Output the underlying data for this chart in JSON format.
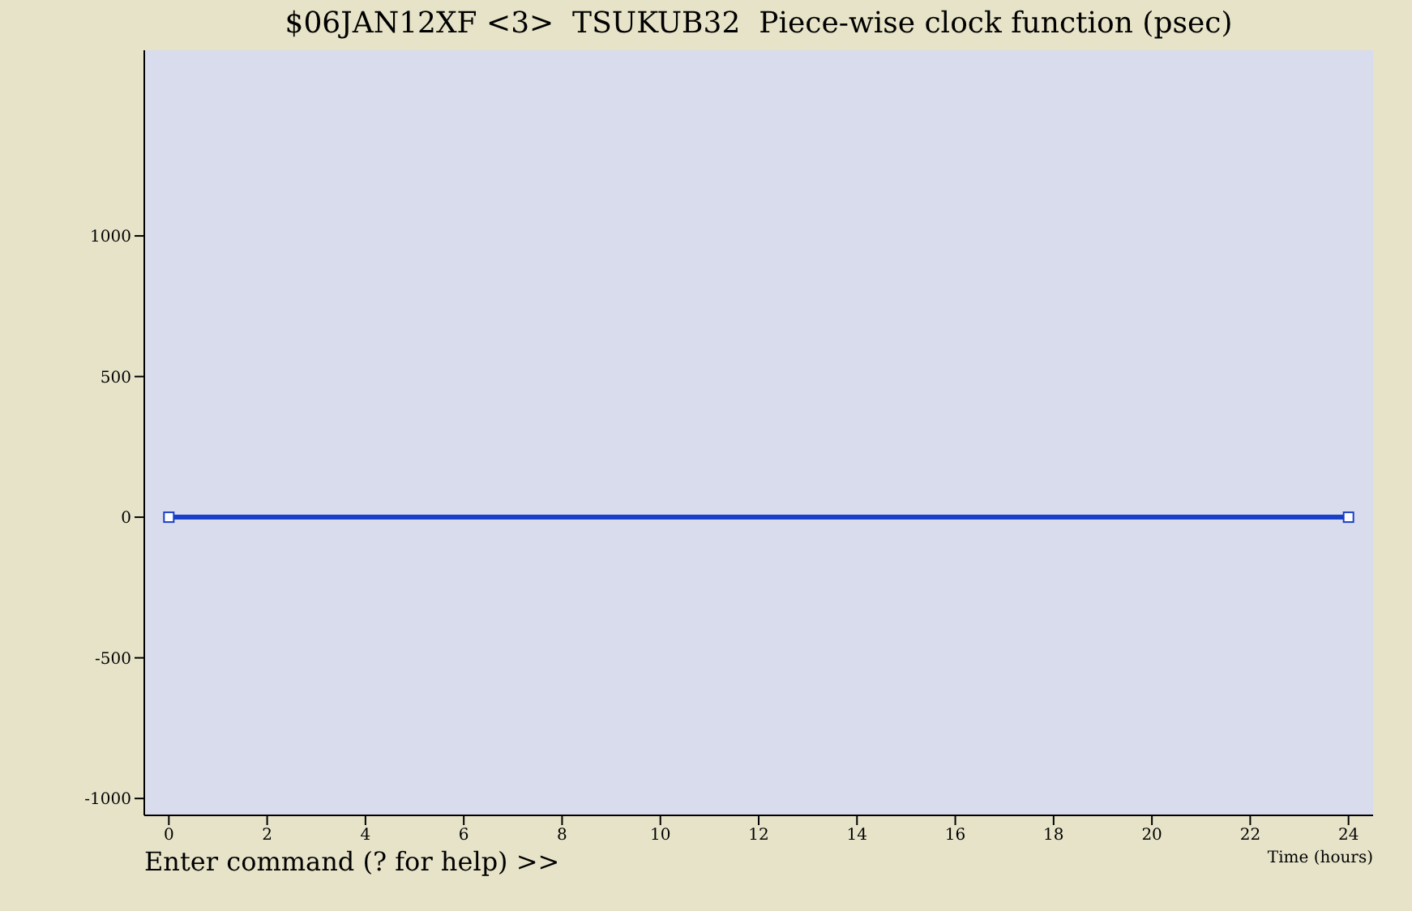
{
  "chart_data": {
    "type": "line",
    "title": "$06JAN12XF <3>  TSUKUB32  Piece-wise clock function (psec)",
    "xlabel": "Time (hours)",
    "annotations": [
      "Enter command (? for help) >>"
    ],
    "x": [
      0,
      24
    ],
    "series": [
      {
        "color": "#1a3fc8",
        "values": [
          0,
          0
        ]
      }
    ],
    "xlim": [
      -0.5,
      24.5
    ],
    "xticks": [
      0,
      2,
      4,
      6,
      8,
      10,
      12,
      14,
      16,
      18,
      20,
      22,
      24
    ],
    "ylim": [
      -1060,
      1660
    ],
    "yticks": [
      -1000,
      -500,
      0,
      500,
      1000
    ],
    "marker": "square",
    "line_style": "solid"
  }
}
